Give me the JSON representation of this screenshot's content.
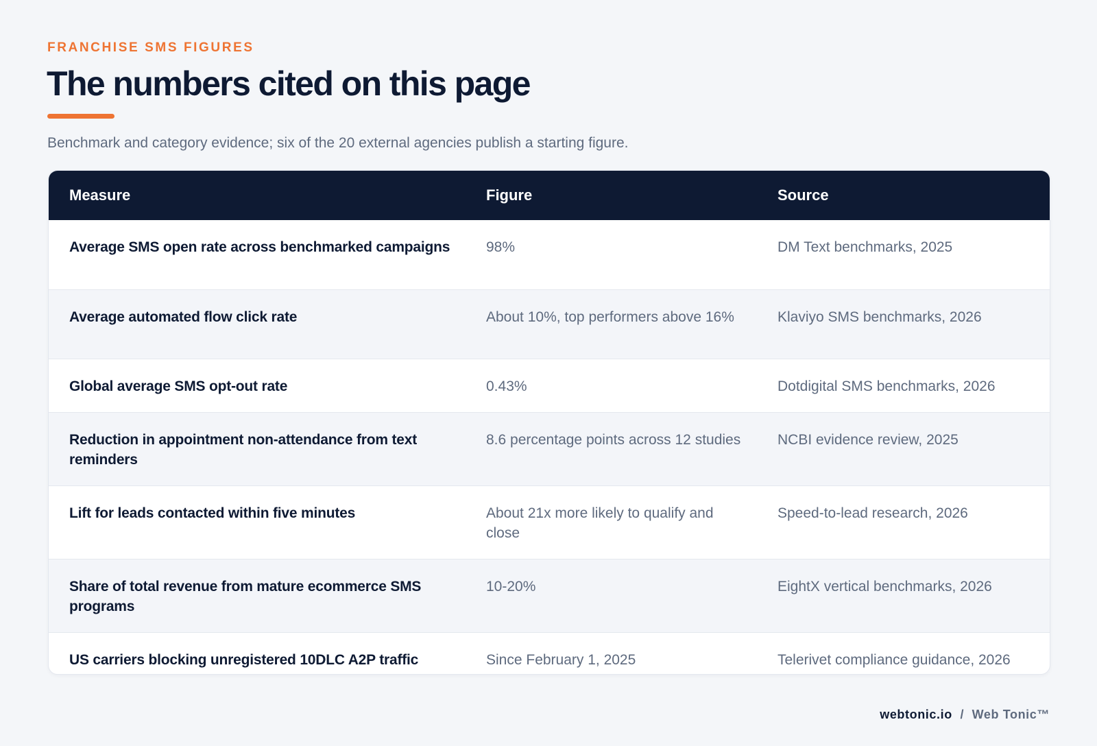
{
  "header": {
    "eyebrow": "FRANCHISE SMS FIGURES",
    "title": "The numbers cited on this page",
    "subtitle": "Benchmark and category evidence; six of the 20 external agencies publish a starting figure."
  },
  "table": {
    "columns": [
      "Measure",
      "Figure",
      "Source"
    ],
    "rows": [
      {
        "measure": "Average SMS open rate across benchmarked campaigns",
        "figure": "98%",
        "source": "DM Text benchmarks, 2025"
      },
      {
        "measure": "Average automated flow click rate",
        "figure": "About 10%, top performers above 16%",
        "source": "Klaviyo SMS benchmarks, 2026"
      },
      {
        "measure": "Global average SMS opt-out rate",
        "figure": "0.43%",
        "source": "Dotdigital SMS benchmarks, 2026"
      },
      {
        "measure": "Reduction in appointment non-attendance from text reminders",
        "figure": "8.6 percentage points across 12 studies",
        "source": "NCBI evidence review, 2025"
      },
      {
        "measure": "Lift for leads contacted within five minutes",
        "figure": "About 21x more likely to qualify and close",
        "source": "Speed-to-lead research, 2026"
      },
      {
        "measure": "Share of total revenue from mature ecommerce SMS programs",
        "figure": "10-20%",
        "source": "EightX vertical benchmarks, 2026"
      },
      {
        "measure": "US carriers blocking unregistered 10DLC A2P traffic",
        "figure": "Since February 1, 2025",
        "source": "Telerivet compliance guidance, 2026"
      }
    ]
  },
  "footer": {
    "site": "webtonic.io",
    "separator": "/",
    "brand": "Web Tonic™"
  }
}
